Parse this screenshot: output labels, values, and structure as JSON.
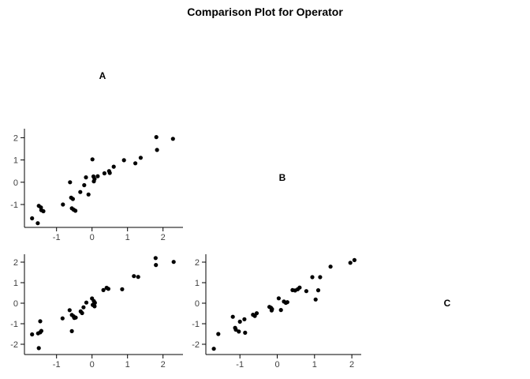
{
  "title": "Comparison Plot for Operator",
  "chart_data": {
    "type": "scatter",
    "title": "Comparison Plot for Operator",
    "layout": "scatterplot-matrix-lower-triangle",
    "grid": false,
    "legend": "none",
    "point_color": "#000000",
    "axis_color": "#000000",
    "tick_label_color": "#404040",
    "diagonal_labels": [
      "A",
      "B",
      "C"
    ],
    "panels": [
      {
        "id": "B-vs-A",
        "x_var": "A",
        "y_var": "B",
        "x_ticks": [
          -1,
          0,
          1,
          2
        ],
        "y_ticks": [
          2,
          1,
          0,
          -1
        ],
        "xlim": [
          -1.9,
          2.55
        ],
        "ylim": [
          -2.05,
          2.4
        ],
        "points": [
          [
            -1.69,
            -1.62
          ],
          [
            -1.53,
            -1.84
          ],
          [
            -1.5,
            -1.06
          ],
          [
            -1.44,
            -1.13
          ],
          [
            -1.43,
            -1.25
          ],
          [
            -1.37,
            -1.3
          ],
          [
            -0.82,
            -1.0
          ],
          [
            -0.62,
            0.0
          ],
          [
            -0.59,
            -0.69
          ],
          [
            -0.54,
            -0.75
          ],
          [
            -0.57,
            -1.17
          ],
          [
            -0.52,
            -1.23
          ],
          [
            -0.47,
            -1.28
          ],
          [
            -0.33,
            -0.44
          ],
          [
            -0.22,
            -0.13
          ],
          [
            -0.17,
            0.22
          ],
          [
            -0.1,
            -0.55
          ],
          [
            0.01,
            1.03
          ],
          [
            0.04,
            0.26
          ],
          [
            0.07,
            0.15
          ],
          [
            0.05,
            0.04
          ],
          [
            0.16,
            0.27
          ],
          [
            0.35,
            0.4
          ],
          [
            0.48,
            0.5
          ],
          [
            0.5,
            0.42
          ],
          [
            0.61,
            0.7
          ],
          [
            0.9,
            0.99
          ],
          [
            1.22,
            0.85
          ],
          [
            1.37,
            1.1
          ],
          [
            1.81,
            2.03
          ],
          [
            1.83,
            1.45
          ],
          [
            2.28,
            1.95
          ]
        ]
      },
      {
        "id": "C-vs-A",
        "x_var": "A",
        "y_var": "C",
        "x_ticks": [
          -1,
          0,
          1,
          2
        ],
        "y_ticks": [
          2,
          1,
          0,
          -1,
          -2
        ],
        "xlim": [
          -1.9,
          2.55
        ],
        "ylim": [
          -2.5,
          2.4
        ],
        "points": [
          [
            -1.69,
            -1.52
          ],
          [
            -1.52,
            -1.47
          ],
          [
            -1.5,
            -2.19
          ],
          [
            -1.46,
            -1.42
          ],
          [
            -1.46,
            -0.88
          ],
          [
            -1.43,
            -1.35
          ],
          [
            -0.83,
            -0.74
          ],
          [
            -0.63,
            -0.34
          ],
          [
            -0.57,
            -1.36
          ],
          [
            -0.57,
            -0.57
          ],
          [
            -0.52,
            -0.64
          ],
          [
            -0.5,
            -0.72
          ],
          [
            -0.46,
            -0.7
          ],
          [
            -0.32,
            -0.4
          ],
          [
            -0.28,
            -0.48
          ],
          [
            -0.24,
            -0.2
          ],
          [
            -0.16,
            0.03
          ],
          [
            0.0,
            0.23
          ],
          [
            0.05,
            0.1
          ],
          [
            0.08,
            0.02
          ],
          [
            0.02,
            -0.08
          ],
          [
            0.07,
            -0.15
          ],
          [
            0.32,
            0.64
          ],
          [
            0.41,
            0.75
          ],
          [
            0.46,
            0.7
          ],
          [
            0.85,
            0.68
          ],
          [
            1.18,
            1.32
          ],
          [
            1.3,
            1.28
          ],
          [
            1.79,
            2.2
          ],
          [
            1.8,
            1.86
          ],
          [
            2.3,
            2.01
          ]
        ]
      },
      {
        "id": "C-vs-B",
        "x_var": "B",
        "y_var": "C",
        "x_ticks": [
          -1,
          0,
          1,
          2
        ],
        "y_ticks": [
          2,
          1,
          0,
          -1,
          -2
        ],
        "xlim": [
          -1.93,
          2.25
        ],
        "ylim": [
          -2.5,
          2.4
        ],
        "points": [
          [
            -1.7,
            -2.22
          ],
          [
            -1.58,
            -1.5
          ],
          [
            -1.19,
            -0.66
          ],
          [
            -1.13,
            -1.2
          ],
          [
            -1.11,
            -1.29
          ],
          [
            -1.03,
            -1.38
          ],
          [
            -1.0,
            -0.9
          ],
          [
            -0.88,
            -0.78
          ],
          [
            -0.86,
            -1.44
          ],
          [
            -0.65,
            -0.56
          ],
          [
            -0.6,
            -0.62
          ],
          [
            -0.55,
            -0.49
          ],
          [
            -0.21,
            -0.18
          ],
          [
            -0.17,
            -0.22
          ],
          [
            -0.14,
            -0.29
          ],
          [
            -0.15,
            -0.35
          ],
          [
            0.04,
            0.24
          ],
          [
            0.1,
            -0.33
          ],
          [
            0.18,
            0.08
          ],
          [
            0.23,
            0.02
          ],
          [
            0.27,
            0.05
          ],
          [
            0.41,
            0.64
          ],
          [
            0.48,
            0.62
          ],
          [
            0.55,
            0.68
          ],
          [
            0.6,
            0.76
          ],
          [
            0.78,
            0.59
          ],
          [
            0.94,
            1.27
          ],
          [
            1.03,
            0.18
          ],
          [
            1.1,
            0.63
          ],
          [
            1.15,
            1.27
          ],
          [
            1.43,
            1.78
          ],
          [
            1.96,
            1.97
          ],
          [
            2.07,
            2.1
          ]
        ]
      }
    ]
  }
}
